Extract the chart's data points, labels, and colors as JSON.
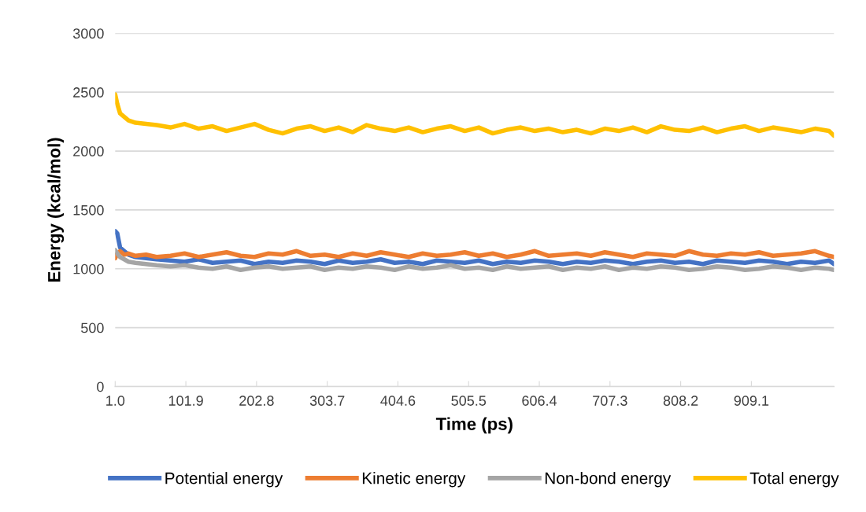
{
  "chart_data": {
    "type": "line",
    "xlabel": "Time (ps)",
    "ylabel": "Energy (kcal/mol)",
    "x": [
      1,
      4,
      8,
      14,
      20,
      30,
      45,
      60,
      80,
      100,
      120,
      140,
      160,
      180,
      200,
      220,
      240,
      260,
      280,
      300,
      320,
      340,
      360,
      380,
      400,
      420,
      440,
      460,
      480,
      500,
      520,
      540,
      560,
      580,
      600,
      620,
      640,
      660,
      680,
      700,
      720,
      740,
      760,
      780,
      800,
      820,
      840,
      860,
      880,
      900,
      920,
      940,
      960,
      980,
      1000,
      1020,
      1027
    ],
    "series": [
      {
        "name": "Potential energy",
        "color": "#4472c4",
        "values": [
          1320,
          1300,
          1180,
          1150,
          1120,
          1100,
          1090,
          1080,
          1070,
          1060,
          1080,
          1050,
          1060,
          1070,
          1040,
          1060,
          1050,
          1070,
          1060,
          1040,
          1070,
          1050,
          1060,
          1080,
          1050,
          1060,
          1040,
          1070,
          1060,
          1050,
          1070,
          1040,
          1060,
          1050,
          1070,
          1060,
          1040,
          1060,
          1050,
          1070,
          1060,
          1040,
          1060,
          1070,
          1050,
          1060,
          1040,
          1070,
          1060,
          1050,
          1070,
          1060,
          1040,
          1060,
          1050,
          1070,
          1040
        ]
      },
      {
        "name": "Kinetic energy",
        "color": "#ed7d31",
        "values": [
          1090,
          1130,
          1150,
          1120,
          1130,
          1110,
          1120,
          1100,
          1110,
          1130,
          1100,
          1120,
          1140,
          1110,
          1100,
          1130,
          1120,
          1150,
          1110,
          1120,
          1100,
          1130,
          1110,
          1140,
          1120,
          1100,
          1130,
          1110,
          1120,
          1140,
          1110,
          1130,
          1100,
          1120,
          1150,
          1110,
          1120,
          1130,
          1110,
          1140,
          1120,
          1100,
          1130,
          1120,
          1110,
          1150,
          1120,
          1110,
          1130,
          1120,
          1140,
          1110,
          1120,
          1130,
          1150,
          1110,
          1100
        ]
      },
      {
        "name": "Non-bond energy",
        "color": "#a5a5a5",
        "values": [
          1160,
          1130,
          1100,
          1080,
          1060,
          1050,
          1040,
          1030,
          1020,
          1030,
          1010,
          1000,
          1020,
          990,
          1010,
          1020,
          1000,
          1010,
          1020,
          990,
          1010,
          1000,
          1020,
          1010,
          990,
          1020,
          1000,
          1010,
          1030,
          1000,
          1010,
          990,
          1020,
          1000,
          1010,
          1020,
          990,
          1010,
          1000,
          1020,
          990,
          1010,
          1000,
          1020,
          1010,
          990,
          1000,
          1020,
          1010,
          990,
          1000,
          1020,
          1010,
          990,
          1010,
          1000,
          990
        ]
      },
      {
        "name": "Total energy",
        "color": "#ffc000",
        "values": [
          2480,
          2400,
          2320,
          2290,
          2260,
          2240,
          2230,
          2220,
          2200,
          2230,
          2190,
          2210,
          2170,
          2200,
          2230,
          2180,
          2150,
          2190,
          2210,
          2170,
          2200,
          2160,
          2220,
          2190,
          2170,
          2200,
          2160,
          2190,
          2210,
          2170,
          2200,
          2150,
          2180,
          2200,
          2170,
          2190,
          2160,
          2180,
          2150,
          2190,
          2170,
          2200,
          2160,
          2210,
          2180,
          2170,
          2200,
          2160,
          2190,
          2210,
          2170,
          2200,
          2180,
          2160,
          2190,
          2170,
          2130
        ]
      }
    ],
    "xlim": [
      1,
      1027
    ],
    "xticks": [
      {
        "value": 1,
        "label": "1.0"
      },
      101.9,
      202.8,
      303.7,
      404.6,
      505.5,
      606.4,
      707.3,
      808.2,
      909.1
    ],
    "ylim": [
      0,
      3000
    ],
    "yticks": [
      0,
      500,
      1000,
      1500,
      2000,
      2500,
      3000
    ],
    "grid": "y",
    "legend": "bottom",
    "line_style": "solid",
    "marker": "none"
  }
}
